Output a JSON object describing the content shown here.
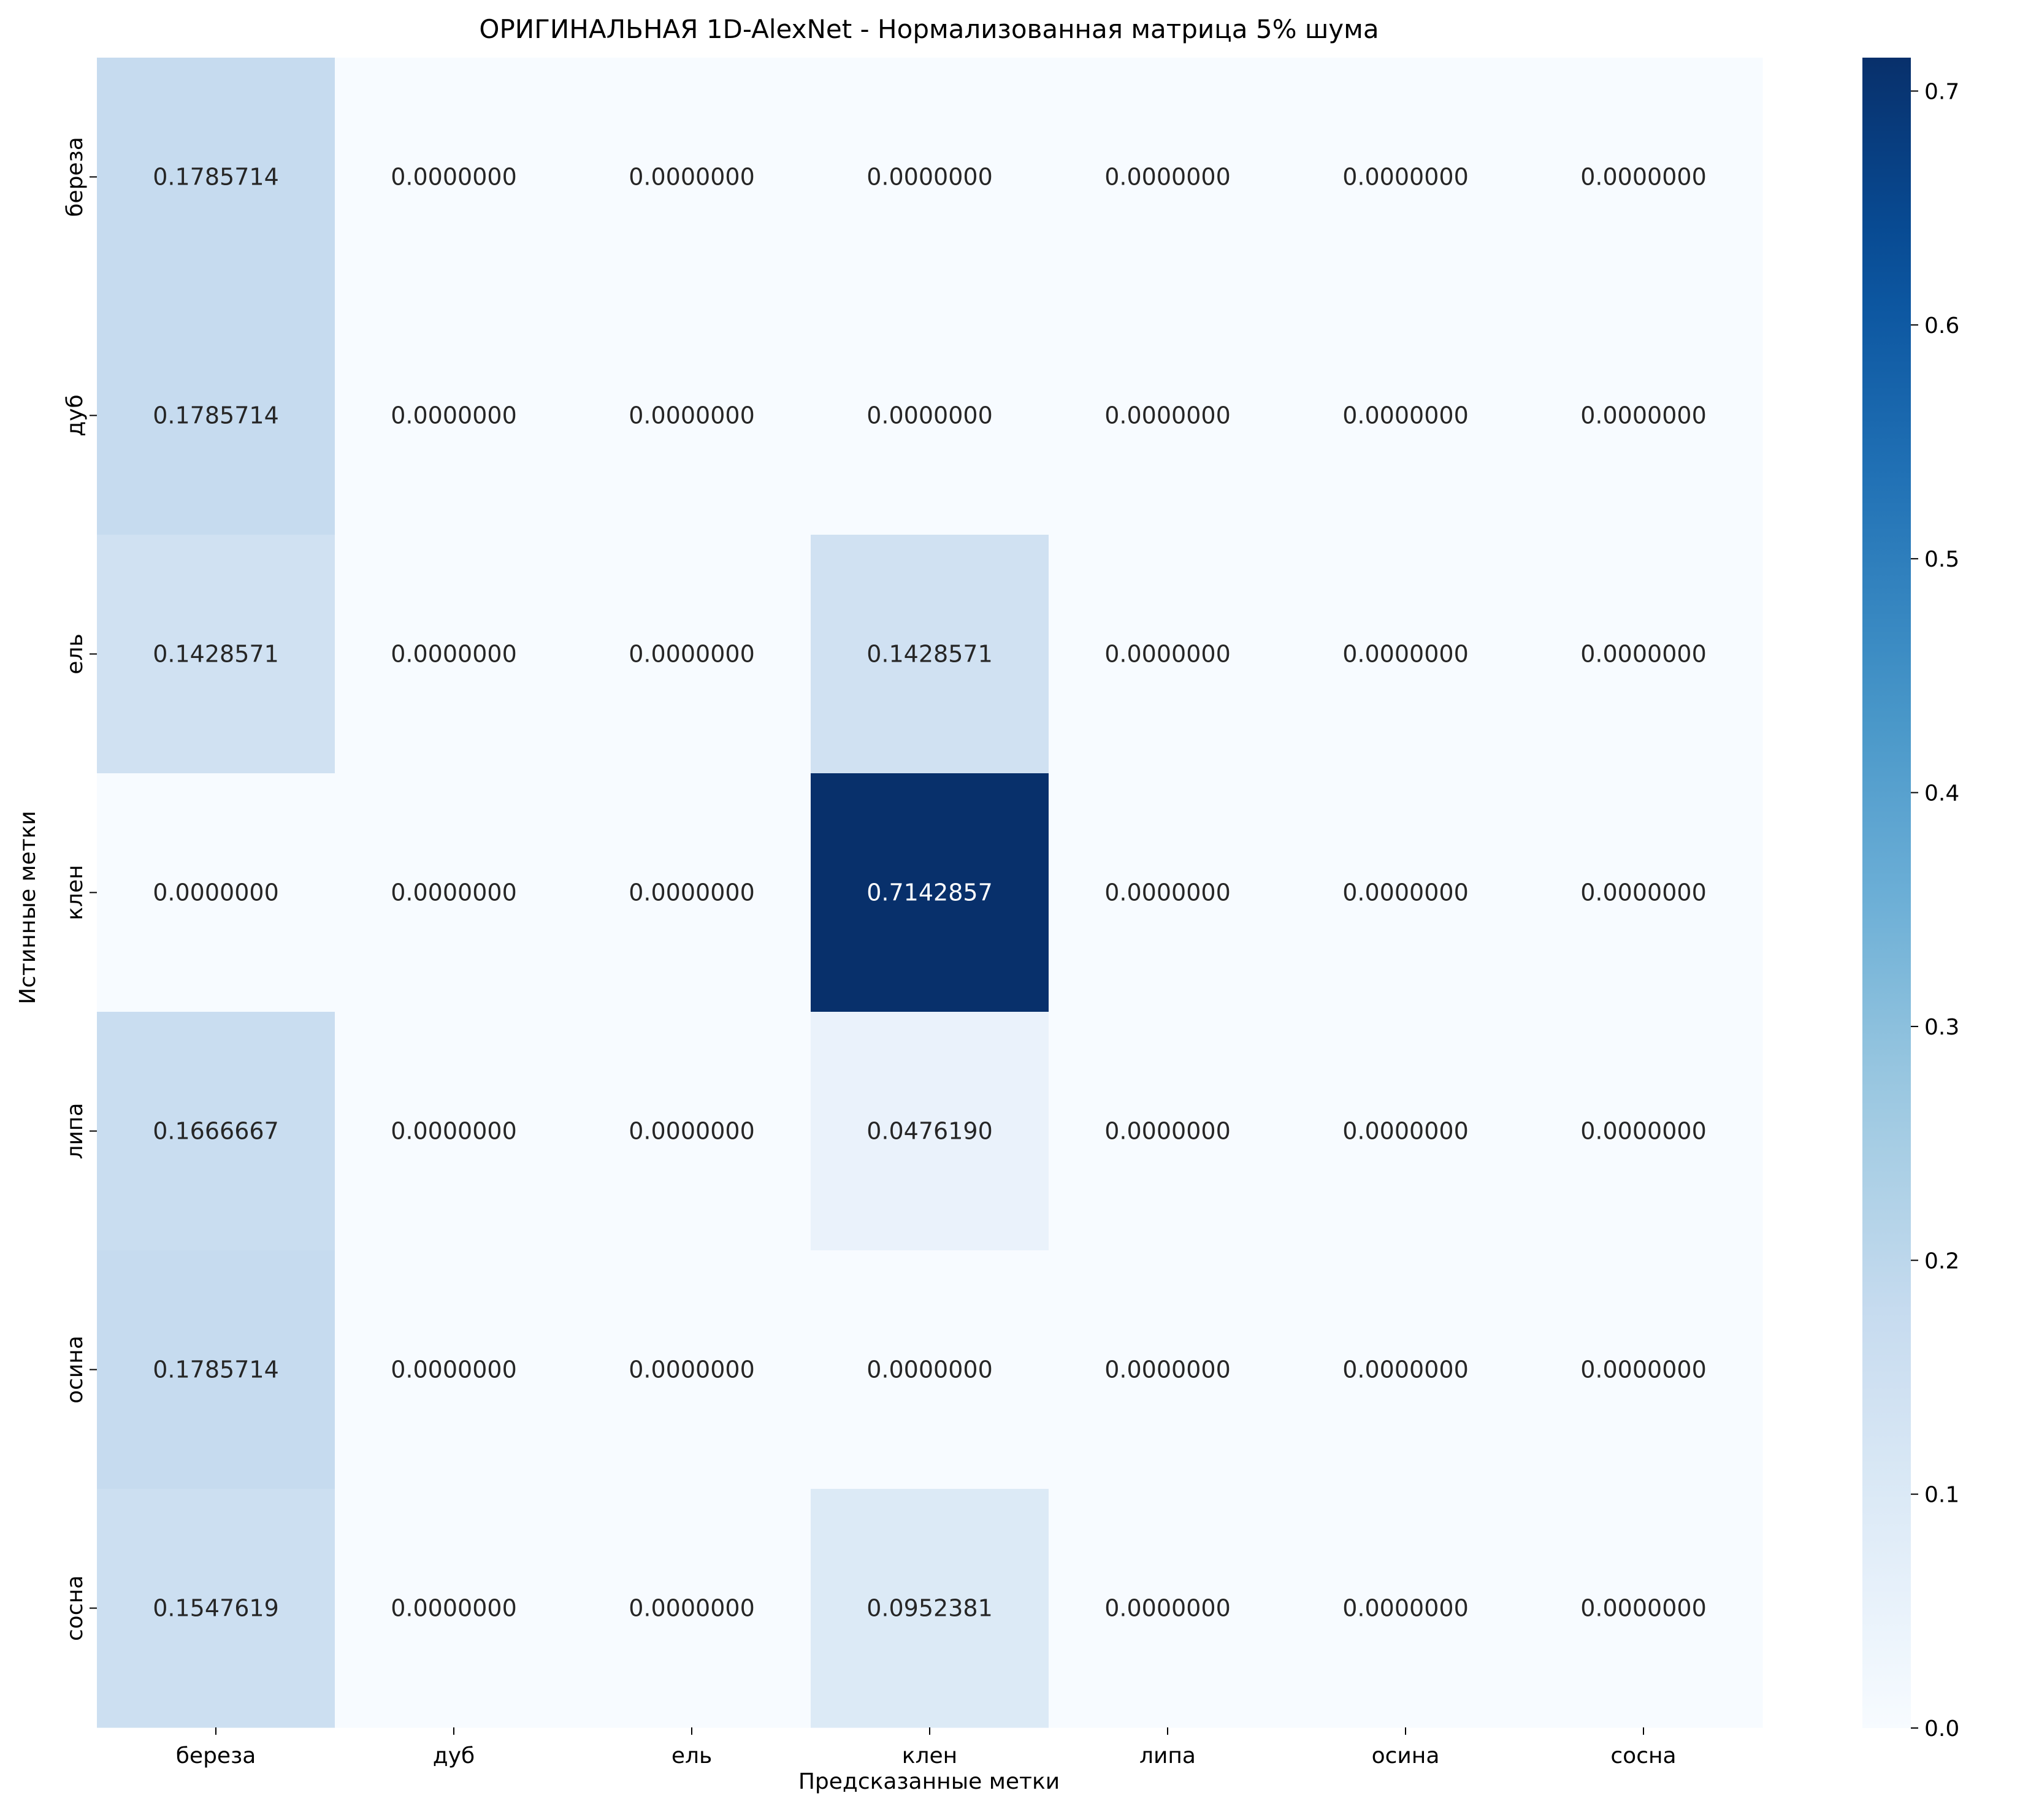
{
  "chart_data": {
    "type": "heatmap",
    "title": "ОРИГИНАЛЬНАЯ 1D-AlexNet - Нормализованная матрица 5% шума",
    "xlabel": "Предсказанные метки",
    "ylabel": "Истинные метки",
    "x_categories": [
      "береза",
      "дуб",
      "ель",
      "клен",
      "липа",
      "осина",
      "сосна"
    ],
    "y_categories": [
      "береза",
      "дуб",
      "ель",
      "клен",
      "липа",
      "осина",
      "сосна"
    ],
    "values": [
      [
        0.1785714,
        0.0,
        0.0,
        0.0,
        0.0,
        0.0,
        0.0
      ],
      [
        0.1785714,
        0.0,
        0.0,
        0.0,
        0.0,
        0.0,
        0.0
      ],
      [
        0.1428571,
        0.0,
        0.0,
        0.1428571,
        0.0,
        0.0,
        0.0
      ],
      [
        0.0,
        0.0,
        0.0,
        0.7142857,
        0.0,
        0.0,
        0.0
      ],
      [
        0.1666667,
        0.0,
        0.0,
        0.047619,
        0.0,
        0.0,
        0.0
      ],
      [
        0.1785714,
        0.0,
        0.0,
        0.0,
        0.0,
        0.0,
        0.0
      ],
      [
        0.1547619,
        0.0,
        0.0,
        0.0952381,
        0.0,
        0.0,
        0.0
      ]
    ],
    "value_format_decimals": 7,
    "colormap": "Blues",
    "colorbar": {
      "range": [
        0.0,
        0.7142857
      ],
      "ticks": [
        0.0,
        0.1,
        0.2,
        0.3,
        0.4,
        0.5,
        0.6,
        0.7
      ],
      "tick_labels": [
        "0.0",
        "0.1",
        "0.2",
        "0.3",
        "0.4",
        "0.5",
        "0.6",
        "0.7"
      ]
    },
    "grid": false
  }
}
